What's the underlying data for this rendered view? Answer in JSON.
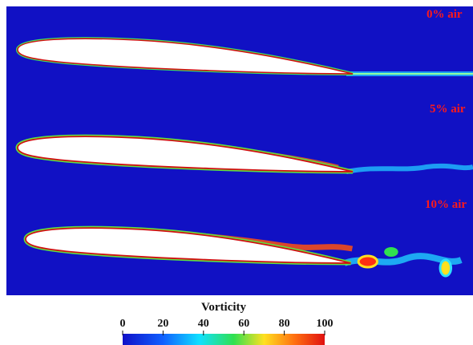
{
  "panels": [
    {
      "label": "0% air"
    },
    {
      "label": "5% air"
    },
    {
      "label": "10% air"
    }
  ],
  "colorbar": {
    "title": "Vorticity",
    "ticks": [
      0,
      20,
      40,
      60,
      80,
      100
    ]
  }
}
